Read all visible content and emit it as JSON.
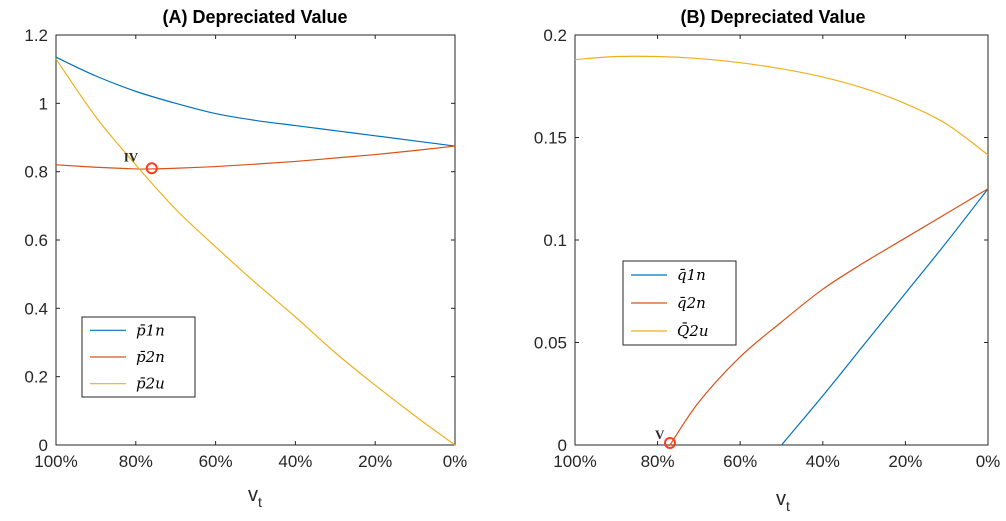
{
  "colors": {
    "blue": "#0072bd",
    "orange": "#d95319",
    "yellow": "#edb120",
    "marker": "#ff3b1f"
  },
  "chart_data": [
    {
      "type": "line",
      "title": "(A) Depreciated Value",
      "xlabel": "v",
      "xlabel_sub": "t",
      "x_tick_labels": [
        "100%",
        "80%",
        "60%",
        "40%",
        "20%",
        "0%"
      ],
      "x_ticks": [
        1.0,
        0.8,
        0.6,
        0.4,
        0.2,
        0.0
      ],
      "xlim": [
        1.0,
        0.0
      ],
      "ylim": [
        0,
        1.2
      ],
      "y_ticks": [
        0,
        0.2,
        0.4,
        0.6,
        0.8,
        1,
        1.2
      ],
      "y_tick_labels": [
        "0",
        "0.2",
        "0.4",
        "0.6",
        "0.8",
        "1",
        "1.2"
      ],
      "grid": false,
      "legend_position": "bottom-left",
      "series": [
        {
          "name": "p̄1n",
          "color": "#0072bd",
          "x": [
            1.0,
            0.9,
            0.8,
            0.7,
            0.6,
            0.5,
            0.4,
            0.3,
            0.2,
            0.1,
            0.0
          ],
          "y": [
            1.135,
            1.08,
            1.035,
            1.0,
            0.97,
            0.95,
            0.935,
            0.92,
            0.905,
            0.89,
            0.875
          ]
        },
        {
          "name": "p̄2n",
          "color": "#d95319",
          "x": [
            1.0,
            0.9,
            0.8,
            0.76,
            0.7,
            0.6,
            0.5,
            0.4,
            0.3,
            0.2,
            0.1,
            0.0
          ],
          "y": [
            0.82,
            0.813,
            0.808,
            0.808,
            0.81,
            0.815,
            0.822,
            0.83,
            0.84,
            0.85,
            0.862,
            0.875
          ]
        },
        {
          "name": "p̄2u",
          "color": "#edb120",
          "x": [
            1.0,
            0.9,
            0.8,
            0.7,
            0.6,
            0.5,
            0.4,
            0.3,
            0.2,
            0.1,
            0.0
          ],
          "y": [
            1.13,
            0.96,
            0.82,
            0.69,
            0.58,
            0.475,
            0.375,
            0.27,
            0.175,
            0.085,
            0.0
          ]
        }
      ],
      "annotations": [
        {
          "label": "IV",
          "x": 0.76,
          "y": 0.81
        }
      ]
    },
    {
      "type": "line",
      "title": "(B) Depreciated Value",
      "xlabel": "v",
      "xlabel_sub": "t",
      "x_tick_labels": [
        "100%",
        "80%",
        "60%",
        "40%",
        "20%",
        "0%"
      ],
      "x_ticks": [
        1.0,
        0.8,
        0.6,
        0.4,
        0.2,
        0.0
      ],
      "xlim": [
        1.0,
        0.0
      ],
      "ylim": [
        0,
        0.2
      ],
      "y_ticks": [
        0,
        0.05,
        0.1,
        0.15,
        0.2
      ],
      "y_tick_labels": [
        "0",
        "0.05",
        "0.1",
        "0.15",
        "0.2"
      ],
      "grid": false,
      "legend_position": "center-left",
      "series": [
        {
          "name": "q̄1n",
          "color": "#0072bd",
          "x": [
            0.5,
            0.4,
            0.3,
            0.2,
            0.1,
            0.0
          ],
          "y": [
            0.0,
            0.024,
            0.049,
            0.074,
            0.099,
            0.125
          ]
        },
        {
          "name": "q̄2n",
          "color": "#d95319",
          "x": [
            0.77,
            0.7,
            0.6,
            0.5,
            0.4,
            0.3,
            0.2,
            0.1,
            0.0
          ],
          "y": [
            0.0,
            0.021,
            0.043,
            0.06,
            0.076,
            0.089,
            0.101,
            0.113,
            0.125
          ]
        },
        {
          "name": "Q̄2u",
          "color": "#edb120",
          "x": [
            1.0,
            0.9,
            0.8,
            0.7,
            0.6,
            0.5,
            0.4,
            0.3,
            0.2,
            0.1,
            0.0
          ],
          "y": [
            0.188,
            0.1895,
            0.1895,
            0.1885,
            0.1865,
            0.1835,
            0.1795,
            0.174,
            0.1665,
            0.1565,
            0.1415
          ]
        }
      ],
      "annotations": [
        {
          "label": "V",
          "x": 0.77,
          "y": 0.001
        }
      ]
    }
  ]
}
